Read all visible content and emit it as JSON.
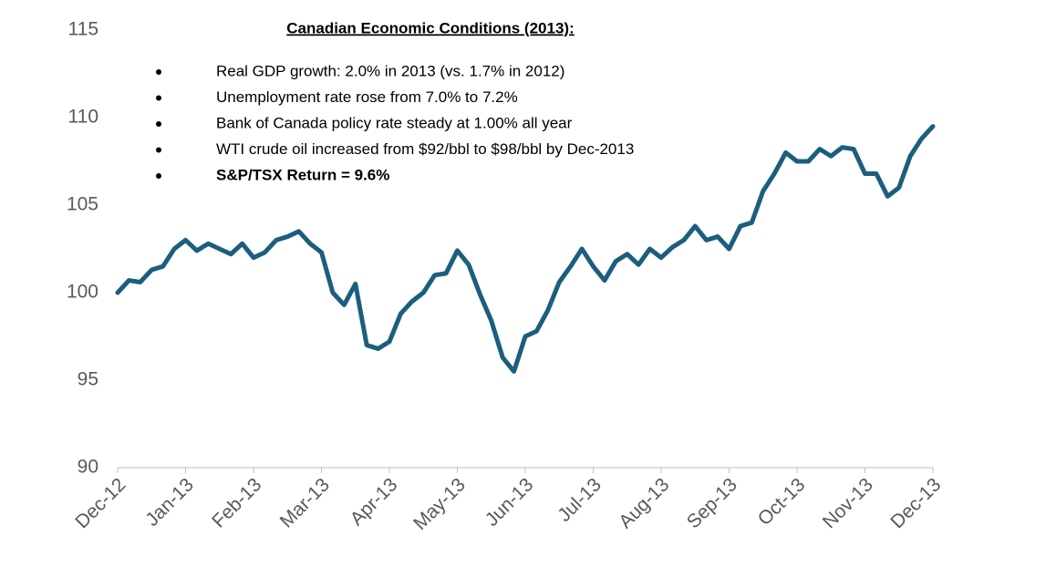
{
  "chart_data": {
    "type": "line",
    "annotation_title": "Canadian Economic Conditions (2013):",
    "annotations": [
      "Real GDP growth: 2.0% in 2013 (vs. 1.7% in 2012)",
      "Unemployment rate rose from 7.0% to 7.2%",
      "Bank of Canada policy rate steady at 1.00% all year",
      "WTI crude oil increased from $92/bbl to $98/bbl by Dec-2013",
      "S&P/TSX Return = 9.6%"
    ],
    "categories": [
      "Dec-12",
      null,
      null,
      null,
      null,
      null,
      "Jan-13",
      null,
      null,
      null,
      null,
      null,
      "Feb-13",
      null,
      null,
      null,
      null,
      null,
      "Mar-13",
      null,
      null,
      null,
      null,
      null,
      "Apr-13",
      null,
      null,
      null,
      null,
      null,
      "May-13",
      null,
      null,
      null,
      null,
      null,
      "Jun-13",
      null,
      null,
      null,
      null,
      null,
      "Jul-13",
      null,
      null,
      null,
      null,
      null,
      "Aug-13",
      null,
      null,
      null,
      null,
      null,
      "Sep-13",
      null,
      null,
      null,
      null,
      null,
      "Oct-13",
      null,
      null,
      null,
      null,
      null,
      "Nov-13",
      null,
      null,
      null,
      null,
      null,
      "Dec-13"
    ],
    "series": [
      {
        "name": "S&P/TSX",
        "color": "#1b5e7e",
        "values": [
          100.0,
          100.7,
          100.6,
          101.3,
          101.5,
          102.5,
          103.0,
          102.4,
          102.8,
          102.5,
          102.2,
          102.8,
          102.0,
          102.3,
          103.0,
          103.2,
          103.5,
          102.8,
          102.3,
          100.0,
          99.3,
          100.5,
          97.0,
          96.8,
          97.2,
          98.8,
          99.5,
          100.0,
          101.0,
          101.1,
          102.4,
          101.6,
          99.9,
          98.4,
          96.3,
          95.5,
          97.5,
          97.8,
          99.0,
          100.6,
          101.5,
          102.5,
          101.5,
          100.7,
          101.8,
          102.2,
          101.6,
          102.5,
          102.0,
          102.6,
          103.0,
          103.8,
          103.0,
          103.2,
          102.5,
          103.8,
          104.0,
          105.8,
          106.8,
          108.0,
          107.5,
          107.5,
          108.2,
          107.8,
          108.3,
          108.2,
          106.8,
          106.8,
          105.5,
          106.0,
          107.8,
          108.8,
          109.5
        ]
      }
    ],
    "ylim": [
      90,
      115
    ],
    "yticks": [
      90,
      95,
      100,
      105,
      110,
      115
    ]
  }
}
